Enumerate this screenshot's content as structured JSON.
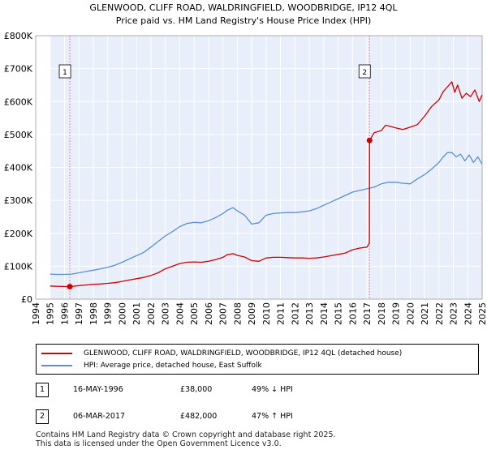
{
  "chart_data": {
    "type": "line",
    "title": "GLENWOOD, CLIFF ROAD, WALDRINGFIELD, WOODBRIDGE, IP12 4QL",
    "subtitle": "Price paid vs. HM Land Registry's House Price Index (HPI)",
    "xlabel": "",
    "ylabel": "",
    "xlim": [
      1994.0,
      2025.0
    ],
    "ylim": [
      0,
      800000
    ],
    "x_ticks": [
      1994,
      1995,
      1996,
      1997,
      1998,
      1999,
      2000,
      2001,
      2002,
      2003,
      2004,
      2005,
      2006,
      2007,
      2008,
      2009,
      2010,
      2011,
      2012,
      2013,
      2014,
      2015,
      2016,
      2017,
      2018,
      2019,
      2020,
      2021,
      2022,
      2023,
      2024,
      2025
    ],
    "y_ticks": [
      {
        "value": 0,
        "label": "£0"
      },
      {
        "value": 100000,
        "label": "£100K"
      },
      {
        "value": 200000,
        "label": "£200K"
      },
      {
        "value": 300000,
        "label": "£300K"
      },
      {
        "value": 400000,
        "label": "£400K"
      },
      {
        "value": 500000,
        "label": "£500K"
      },
      {
        "value": 600000,
        "label": "£600K"
      },
      {
        "value": 700000,
        "label": "£700K"
      },
      {
        "value": 800000,
        "label": "£800K"
      }
    ],
    "grid": true,
    "data_range_x": [
      1995.0,
      2025.0
    ],
    "series": [
      {
        "name": "GLENWOOD, CLIFF ROAD, WALDRINGFIELD, WOODBRIDGE, IP12 4QL (detached house)",
        "color": "#cc0000",
        "x": [
          1995.0,
          1995.5,
          1996.0,
          1996.37,
          1997.0,
          1997.5,
          1998.0,
          1998.5,
          1999.0,
          1999.5,
          2000.0,
          2000.5,
          2001.0,
          2001.5,
          2002.0,
          2002.5,
          2003.0,
          2003.5,
          2004.0,
          2004.5,
          2005.0,
          2005.5,
          2006.0,
          2006.5,
          2007.0,
          2007.3,
          2007.7,
          2008.0,
          2008.5,
          2009.0,
          2009.5,
          2010.0,
          2010.5,
          2011.0,
          2011.5,
          2012.0,
          2012.5,
          2013.0,
          2013.5,
          2014.0,
          2014.5,
          2015.0,
          2015.5,
          2016.0,
          2016.5,
          2017.0,
          2017.17,
          2017.18,
          2017.5,
          2018.0,
          2018.3,
          2018.6,
          2019.0,
          2019.5,
          2020.0,
          2020.5,
          2021.0,
          2021.5,
          2022.0,
          2022.3,
          2022.6,
          2022.9,
          2023.1,
          2023.3,
          2023.6,
          2023.9,
          2024.2,
          2024.5,
          2024.8,
          2025.0
        ],
        "y": [
          40000,
          39000,
          38500,
          38000,
          41000,
          43000,
          45000,
          46000,
          48000,
          50000,
          54000,
          58000,
          62000,
          66000,
          72000,
          80000,
          92000,
          100000,
          108000,
          112000,
          113000,
          112000,
          115000,
          120000,
          127000,
          135000,
          138000,
          133000,
          128000,
          117000,
          115000,
          125000,
          127000,
          127000,
          126000,
          125000,
          125000,
          124000,
          125000,
          128000,
          132000,
          136000,
          140000,
          150000,
          155000,
          158000,
          170000,
          482000,
          505000,
          512000,
          528000,
          525000,
          520000,
          515000,
          522000,
          530000,
          555000,
          585000,
          605000,
          630000,
          645000,
          660000,
          628000,
          650000,
          610000,
          625000,
          615000,
          635000,
          600000,
          620000
        ]
      },
      {
        "name": "HPI: Average price, detached house, East Suffolk",
        "color": "#5a8fd0",
        "x": [
          1995.0,
          1995.5,
          1996.0,
          1996.5,
          1997.0,
          1997.5,
          1998.0,
          1998.5,
          1999.0,
          1999.5,
          2000.0,
          2000.5,
          2001.0,
          2001.5,
          2002.0,
          2002.5,
          2003.0,
          2003.5,
          2004.0,
          2004.5,
          2005.0,
          2005.5,
          2006.0,
          2006.5,
          2007.0,
          2007.3,
          2007.7,
          2008.0,
          2008.5,
          2009.0,
          2009.5,
          2010.0,
          2010.5,
          2011.0,
          2011.5,
          2012.0,
          2012.5,
          2013.0,
          2013.5,
          2014.0,
          2014.5,
          2015.0,
          2015.5,
          2016.0,
          2016.5,
          2017.0,
          2017.5,
          2018.0,
          2018.5,
          2019.0,
          2019.5,
          2020.0,
          2020.5,
          2021.0,
          2021.5,
          2022.0,
          2022.3,
          2022.6,
          2022.9,
          2023.2,
          2023.5,
          2023.8,
          2024.1,
          2024.4,
          2024.7,
          2025.0
        ],
        "y": [
          76000,
          75000,
          75000,
          76000,
          80000,
          84000,
          88000,
          92000,
          97000,
          103000,
          112000,
          122000,
          132000,
          142000,
          158000,
          175000,
          192000,
          205000,
          220000,
          230000,
          233000,
          232000,
          238000,
          248000,
          260000,
          270000,
          278000,
          268000,
          255000,
          228000,
          232000,
          255000,
          260000,
          262000,
          263000,
          263000,
          265000,
          268000,
          275000,
          285000,
          295000,
          305000,
          315000,
          325000,
          330000,
          335000,
          340000,
          350000,
          355000,
          355000,
          352000,
          350000,
          365000,
          378000,
          395000,
          415000,
          432000,
          445000,
          445000,
          432000,
          440000,
          420000,
          438000,
          415000,
          432000,
          410000
        ]
      }
    ],
    "annotations": [
      {
        "label": "1",
        "x": 1996.37,
        "y": 38000
      },
      {
        "label": "2",
        "x": 2017.18,
        "y": 482000
      }
    ],
    "legend_position": "below"
  },
  "legend": {
    "entries": [
      {
        "label": "GLENWOOD, CLIFF ROAD, WALDRINGFIELD, WOODBRIDGE, IP12 4QL (detached house)",
        "color": "#cc0000"
      },
      {
        "label": "HPI: Average price, detached house, East Suffolk",
        "color": "#5a8fd0"
      }
    ]
  },
  "sales": [
    {
      "num": "1",
      "date": "16-MAY-1996",
      "price": "£38,000",
      "hpi": "49% ↓ HPI"
    },
    {
      "num": "2",
      "date": "06-MAR-2017",
      "price": "£482,000",
      "hpi": "47% ↑ HPI"
    }
  ],
  "footer": {
    "line1": "Contains HM Land Registry data © Crown copyright and database right 2025.",
    "line2": "This data is licensed under the Open Government Licence v3.0."
  }
}
